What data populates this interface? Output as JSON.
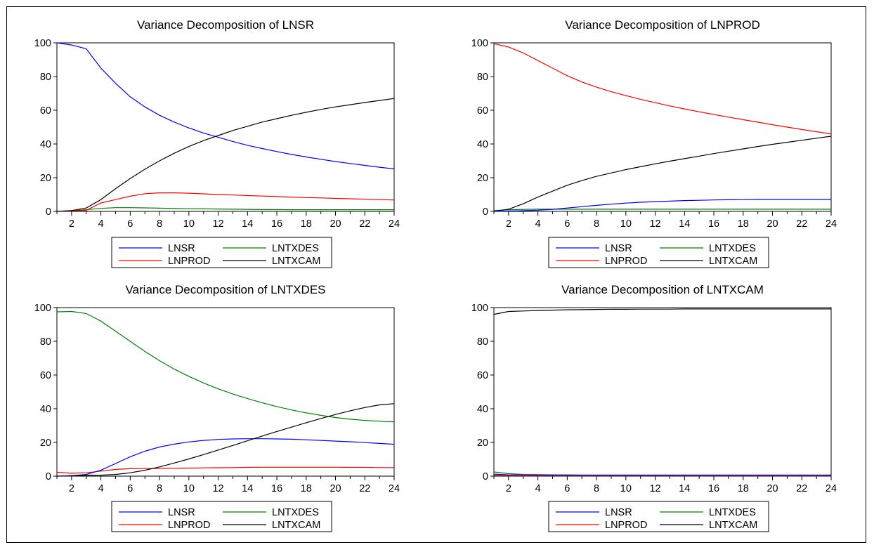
{
  "colors": {
    "LNSR": "#0000ff",
    "LNPROD": "#ff0000",
    "LNTXDES": "#008000",
    "LNTXCAM": "#000000"
  },
  "chart_data": [
    {
      "type": "line",
      "title": "Variance Decomposition of LNSR",
      "x": [
        1,
        2,
        3,
        4,
        5,
        6,
        7,
        8,
        9,
        10,
        11,
        12,
        13,
        14,
        15,
        16,
        17,
        18,
        19,
        20,
        21,
        22,
        23,
        24
      ],
      "ylim": [
        0,
        100
      ],
      "yticks": [
        0,
        20,
        40,
        60,
        80,
        100
      ],
      "xticks": [
        2,
        4,
        6,
        8,
        10,
        12,
        14,
        16,
        18,
        20,
        22,
        24
      ],
      "legend": "bottom",
      "series": [
        {
          "name": "LNSR",
          "values": [
            100,
            98.7,
            96.5,
            85,
            76,
            68,
            62,
            57,
            53,
            49.5,
            46.5,
            44,
            41.5,
            39.2,
            37.3,
            35.5,
            33.8,
            32.3,
            30.9,
            29.6,
            28.4,
            27.3,
            26.2,
            25.2
          ]
        },
        {
          "name": "LNTXDES",
          "values": [
            0,
            0.5,
            1,
            1.8,
            2.2,
            2.2,
            2.1,
            1.9,
            1.7,
            1.6,
            1.5,
            1.4,
            1.3,
            1.2,
            1.1,
            1.1,
            1,
            1,
            1,
            1,
            1,
            1,
            1,
            1
          ]
        },
        {
          "name": "LNPROD",
          "values": [
            0,
            0.3,
            0.6,
            5,
            7,
            9,
            10.5,
            11,
            11,
            10.8,
            10.4,
            10,
            9.7,
            9.4,
            9.1,
            8.8,
            8.5,
            8.2,
            8,
            7.7,
            7.5,
            7.2,
            7,
            6.8
          ]
        },
        {
          "name": "LNTXCAM",
          "values": [
            0,
            0.5,
            2,
            7,
            13.5,
            19.5,
            25,
            30,
            34.5,
            38.5,
            42,
            45,
            48,
            50.5,
            53,
            55,
            57,
            58.8,
            60.5,
            62,
            63.3,
            64.6,
            65.8,
            67
          ]
        }
      ]
    },
    {
      "type": "line",
      "title": "Variance Decomposition of LNPROD",
      "x": [
        1,
        2,
        3,
        4,
        5,
        6,
        7,
        8,
        9,
        10,
        11,
        12,
        13,
        14,
        15,
        16,
        17,
        18,
        19,
        20,
        21,
        22,
        23,
        24
      ],
      "ylim": [
        0,
        100
      ],
      "yticks": [
        0,
        20,
        40,
        60,
        80,
        100
      ],
      "xticks": [
        2,
        4,
        6,
        8,
        10,
        12,
        14,
        16,
        18,
        20,
        22,
        24
      ],
      "legend": "bottom",
      "series": [
        {
          "name": "LNSR",
          "values": [
            0,
            0.2,
            0.4,
            0.7,
            1.2,
            2,
            2.8,
            3.6,
            4.3,
            4.9,
            5.4,
            5.8,
            6.1,
            6.4,
            6.6,
            6.8,
            6.9,
            7,
            7.1,
            7.1,
            7.1,
            7.1,
            7.1,
            7.1
          ]
        },
        {
          "name": "LNTXDES",
          "values": [
            0.5,
            1,
            1.2,
            1.3,
            1.3,
            1.3,
            1.3,
            1.3,
            1.3,
            1.3,
            1.3,
            1.3,
            1.3,
            1.3,
            1.3,
            1.3,
            1.3,
            1.3,
            1.3,
            1.3,
            1.3,
            1.3,
            1.3,
            1.3
          ]
        },
        {
          "name": "LNPROD",
          "values": [
            99.5,
            97.5,
            94,
            89.5,
            85,
            80.5,
            76.8,
            73.7,
            71,
            68.7,
            66.5,
            64.5,
            62.6,
            60.8,
            59.1,
            57.5,
            55.9,
            54.4,
            52.9,
            51.4,
            50,
            48.6,
            47.3,
            46
          ]
        },
        {
          "name": "LNTXCAM",
          "values": [
            0,
            1.3,
            4.5,
            8.5,
            12,
            15.5,
            18.3,
            20.8,
            22.8,
            24.8,
            26.5,
            28.2,
            29.8,
            31.3,
            32.8,
            34.3,
            35.7,
            37.1,
            38.5,
            39.8,
            41,
            42.2,
            43.4,
            44.6
          ]
        }
      ]
    },
    {
      "type": "line",
      "title": "Variance Decomposition of LNTXDES",
      "x": [
        1,
        2,
        3,
        4,
        5,
        6,
        7,
        8,
        9,
        10,
        11,
        12,
        13,
        14,
        15,
        16,
        17,
        18,
        19,
        20,
        21,
        22,
        23,
        24
      ],
      "ylim": [
        0,
        100
      ],
      "yticks": [
        0,
        20,
        40,
        60,
        80,
        100
      ],
      "xticks": [
        2,
        4,
        6,
        8,
        10,
        12,
        14,
        16,
        18,
        20,
        22,
        24
      ],
      "legend": "bottom",
      "series": [
        {
          "name": "LNSR",
          "values": [
            0,
            0.3,
            1,
            3.5,
            7.5,
            11.5,
            14.8,
            17.3,
            19,
            20.3,
            21.2,
            21.8,
            22.1,
            22.2,
            22.2,
            22.1,
            21.9,
            21.6,
            21.2,
            20.8,
            20.4,
            19.9,
            19.4,
            18.9
          ]
        },
        {
          "name": "LNTXDES",
          "values": [
            97.5,
            97.7,
            96.5,
            92,
            86,
            80,
            74,
            68.5,
            63.5,
            59.2,
            55.3,
            51.8,
            48.7,
            46,
            43.5,
            41.3,
            39.3,
            37.6,
            36.1,
            34.8,
            33.8,
            33.1,
            32.6,
            32.2
          ]
        },
        {
          "name": "LNPROD",
          "values": [
            2.3,
            1.7,
            2,
            3,
            4,
            4.4,
            4.5,
            4.6,
            4.7,
            4.8,
            4.9,
            5,
            5.1,
            5.2,
            5.3,
            5.3,
            5.3,
            5.3,
            5.3,
            5.3,
            5.2,
            5.2,
            5.1,
            5.1
          ]
        },
        {
          "name": "LNTXCAM",
          "values": [
            0,
            0.3,
            0.5,
            0.6,
            1,
            2,
            3.5,
            5.5,
            7.8,
            10.2,
            12.8,
            15.5,
            18.2,
            21,
            23.8,
            26.5,
            29.1,
            31.7,
            34.2,
            36.6,
            38.8,
            40.7,
            42.3,
            43
          ]
        }
      ]
    },
    {
      "type": "line",
      "title": "Variance Decomposition of LNTXCAM",
      "x": [
        1,
        2,
        3,
        4,
        5,
        6,
        7,
        8,
        9,
        10,
        11,
        12,
        13,
        14,
        15,
        16,
        17,
        18,
        19,
        20,
        21,
        22,
        23,
        24
      ],
      "ylim": [
        0,
        100
      ],
      "yticks": [
        0,
        20,
        40,
        60,
        80,
        100
      ],
      "xticks": [
        2,
        4,
        6,
        8,
        10,
        12,
        14,
        16,
        18,
        20,
        22,
        24
      ],
      "legend": "bottom",
      "series": [
        {
          "name": "LNSR",
          "values": [
            1.2,
            0.8,
            0.7,
            0.6,
            0.6,
            0.5,
            0.5,
            0.5,
            0.5,
            0.5,
            0.5,
            0.5,
            0.5,
            0.5,
            0.5,
            0.5,
            0.5,
            0.5,
            0.5,
            0.5,
            0.5,
            0.5,
            0.5,
            0.5
          ]
        },
        {
          "name": "LNTXDES",
          "values": [
            2.5,
            1.5,
            1,
            0.9,
            0.8,
            0.8,
            0.7,
            0.7,
            0.7,
            0.7,
            0.7,
            0.7,
            0.7,
            0.7,
            0.7,
            0.7,
            0.7,
            0.7,
            0.7,
            0.7,
            0.7,
            0.7,
            0.7,
            0.7
          ]
        },
        {
          "name": "LNPROD",
          "values": [
            0.5,
            0.3,
            0.2,
            0.2,
            0.2,
            0.2,
            0.2,
            0.2,
            0.2,
            0.2,
            0.2,
            0.2,
            0.2,
            0.2,
            0.2,
            0.2,
            0.2,
            0.2,
            0.2,
            0.2,
            0.2,
            0.2,
            0.2,
            0.2
          ]
        },
        {
          "name": "LNTXCAM",
          "values": [
            96,
            97.7,
            98,
            98.3,
            98.5,
            98.7,
            98.8,
            98.9,
            99,
            99,
            99.1,
            99.1,
            99.1,
            99.2,
            99.2,
            99.2,
            99.2,
            99.2,
            99.2,
            99.2,
            99.2,
            99.2,
            99.2,
            99.2
          ]
        }
      ]
    }
  ],
  "legend_order": [
    "LNSR",
    "LNTXDES",
    "LNPROD",
    "LNTXCAM"
  ]
}
